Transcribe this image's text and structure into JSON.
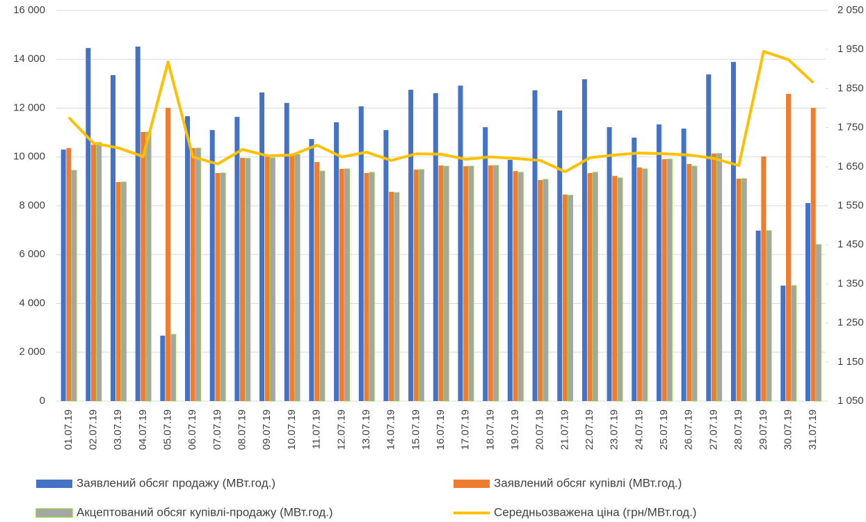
{
  "chart_data": {
    "type": "bar",
    "categories": [
      "01.07.19",
      "02.07.19",
      "03.07.19",
      "04.07.19",
      "05.07.19",
      "06.07.19",
      "07.07.19",
      "08.07.19",
      "09.07.19",
      "10.07.19",
      "11.07.19",
      "12.07.19",
      "13.07.19",
      "14.07.19",
      "15.07.19",
      "16.07.19",
      "17.07.19",
      "18.07.19",
      "19.07.19",
      "20.07.19",
      "21.07.19",
      "22.07.19",
      "23.07.19",
      "24.07.19",
      "25.07.19",
      "26.07.19",
      "27.07.19",
      "28.07.19",
      "29.07.19",
      "30.07.19",
      "31.07.19"
    ],
    "series": [
      {
        "name": "Заявлений обсяг продажу (МВт.год.)",
        "type": "bar",
        "color": "#4472c4",
        "values": [
          10300,
          14460,
          13350,
          14520,
          2680,
          11670,
          11100,
          11640,
          12640,
          12210,
          10730,
          11420,
          12070,
          11100,
          12750,
          12610,
          12920,
          11220,
          9880,
          12730,
          11900,
          13180,
          11220,
          10790,
          11330,
          11160,
          13380,
          13890,
          6980,
          4730,
          8110
        ]
      },
      {
        "name": "Заявлений обсяг купівлі (МВт.год.)",
        "type": "bar",
        "color": "#ed7d31",
        "values": [
          10360,
          10500,
          8970,
          11020,
          12010,
          10360,
          9340,
          9960,
          10000,
          10100,
          9790,
          9510,
          9340,
          8570,
          9480,
          9650,
          9620,
          9650,
          9420,
          9050,
          8460,
          9340,
          9220,
          9570,
          9910,
          9710,
          10140,
          9110,
          10020,
          12580,
          12010
        ]
      },
      {
        "name": "Акцептований обсяг купівлі-продажу (МВт.год.)",
        "type": "bar",
        "color": "#a5a5a5",
        "edgecolor": "#92d050",
        "values": [
          9450,
          10590,
          8970,
          11020,
          2730,
          10360,
          9340,
          9940,
          9960,
          10100,
          9420,
          9510,
          9370,
          8540,
          9480,
          9620,
          9620,
          9650,
          9370,
          9080,
          8430,
          9370,
          9140,
          9510,
          9910,
          9620,
          10140,
          9110,
          6980,
          4730,
          6410
        ]
      },
      {
        "name": "Середньозважена ціна (грн/МВт.год.)",
        "type": "line",
        "axis": "y2",
        "color": "#ffc000",
        "values": [
          1776,
          1710,
          1698,
          1676,
          1918,
          1675,
          1657,
          1694,
          1678,
          1680,
          1705,
          1675,
          1687,
          1666,
          1683,
          1682,
          1669,
          1675,
          1671,
          1666,
          1637,
          1673,
          1680,
          1685,
          1683,
          1680,
          1671,
          1653,
          1945,
          1924,
          1865
        ]
      }
    ],
    "ylim": [
      0,
      16000
    ],
    "yticks": [
      0,
      {
        "value": 2000,
        "label": "2 000"
      },
      {
        "value": 4000,
        "label": "4 000"
      },
      {
        "value": 6000,
        "label": "6 000"
      },
      {
        "value": 8000,
        "label": "8 000"
      },
      {
        "value": 10000,
        "label": "10 000"
      },
      {
        "value": 12000,
        "label": "12 000"
      },
      {
        "value": 14000,
        "label": "14 000"
      },
      {
        "value": 16000,
        "label": "16 000"
      }
    ],
    "y2lim": [
      1050,
      2050
    ],
    "y2ticks": [
      {
        "value": 1050,
        "label": "1 050"
      },
      {
        "value": 1150,
        "label": "1 150"
      },
      {
        "value": 1250,
        "label": "1 250"
      },
      {
        "value": 1350,
        "label": "1 350"
      },
      {
        "value": 1450,
        "label": "1 450"
      },
      {
        "value": 1550,
        "label": "1 550"
      },
      {
        "value": 1650,
        "label": "1 650"
      },
      {
        "value": 1750,
        "label": "1 750"
      },
      {
        "value": 1850,
        "label": "1 850"
      },
      {
        "value": 1950,
        "label": "1 950"
      },
      {
        "value": 2050,
        "label": "2 050"
      }
    ],
    "grid": true,
    "legend": "bottom"
  }
}
